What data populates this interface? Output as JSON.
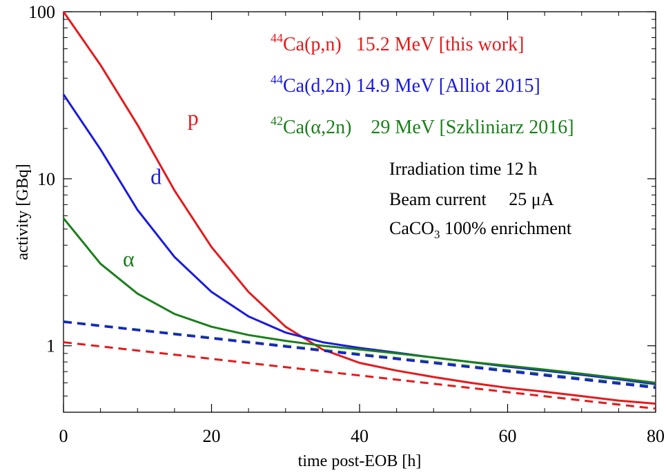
{
  "chart_data": {
    "type": "line",
    "xlabel": "time post-EOB [h]",
    "ylabel": "activity [GBq]",
    "xlim": [
      0,
      80
    ],
    "ylim": [
      0.4,
      100
    ],
    "yscale": "log",
    "xticks": [
      0,
      20,
      40,
      60,
      80
    ],
    "xtick_labels": [
      "0",
      "20",
      "40",
      "60",
      "80"
    ],
    "yticks": [
      1,
      10,
      100
    ],
    "ytick_labels": [
      "1",
      "10",
      "100"
    ],
    "grid": false,
    "series": [
      {
        "name": "p",
        "color": "#e41a1c",
        "style": "solid",
        "x": [
          0,
          5,
          10,
          15,
          20,
          25,
          30,
          35,
          40,
          45,
          50,
          55,
          60,
          65,
          70,
          75,
          80
        ],
        "y": [
          100,
          48,
          21,
          8.5,
          3.9,
          2.1,
          1.3,
          0.95,
          0.79,
          0.71,
          0.65,
          0.6,
          0.56,
          0.53,
          0.5,
          0.47,
          0.45
        ]
      },
      {
        "name": "d",
        "color": "#1a1ae0",
        "style": "solid",
        "x": [
          0,
          5,
          10,
          15,
          20,
          25,
          30,
          35,
          40,
          45,
          50,
          55,
          60,
          65,
          70,
          75,
          80
        ],
        "y": [
          32,
          15,
          6.5,
          3.4,
          2.1,
          1.5,
          1.2,
          1.05,
          0.97,
          0.91,
          0.85,
          0.8,
          0.75,
          0.71,
          0.67,
          0.63,
          0.59
        ]
      },
      {
        "name": "α",
        "color": "#1a7f1a",
        "style": "solid",
        "x": [
          0,
          5,
          10,
          15,
          20,
          25,
          30,
          35,
          40,
          45,
          50,
          55,
          60,
          65,
          70,
          75,
          80
        ],
        "y": [
          5.8,
          3.1,
          2.05,
          1.55,
          1.3,
          1.16,
          1.07,
          1.0,
          0.95,
          0.9,
          0.85,
          0.8,
          0.76,
          0.72,
          0.68,
          0.64,
          0.6
        ]
      },
      {
        "name": "",
        "color": "#e41a1c",
        "style": "dashed",
        "x": [
          0,
          80
        ],
        "y": [
          1.05,
          0.42
        ]
      },
      {
        "name": "",
        "color": "#1a7f1a",
        "style": "dashed",
        "x": [
          0,
          80
        ],
        "y": [
          1.4,
          0.57
        ]
      },
      {
        "name": "",
        "color": "#1a1ae0",
        "style": "dashed",
        "x": [
          0,
          80
        ],
        "y": [
          1.39,
          0.56
        ]
      }
    ],
    "curve_labels": [
      {
        "text": "p",
        "color": "#e41a1c",
        "x": 17.5,
        "y": 21
      },
      {
        "text": "d",
        "color": "#1a1ae0",
        "x": 12.5,
        "y": 9.3
      },
      {
        "text": "α",
        "color": "#1a7f1a",
        "x": 8.8,
        "y": 3.0
      }
    ],
    "legend": {
      "placement": "top-right",
      "entries": [
        {
          "sup": "44",
          "text": "Ca(p,n)   15.2 MeV [this work]",
          "color": "#e41a1c"
        },
        {
          "sup": "44",
          "text": "Ca(d,2n) 14.9 MeV [Alliot 2015]",
          "color": "#1a1ae0"
        },
        {
          "sup": "42",
          "text": "Ca(α,2n)    29 MeV [Szkliniarz 2016]",
          "color": "#1a7f1a"
        }
      ]
    },
    "annotation": {
      "line1": "Irradiation time 12 h",
      "line2": "Beam current     25 μA",
      "line3_pre": "CaCO",
      "line3_sub": "3",
      "line3_post": " 100% enrichment"
    }
  }
}
